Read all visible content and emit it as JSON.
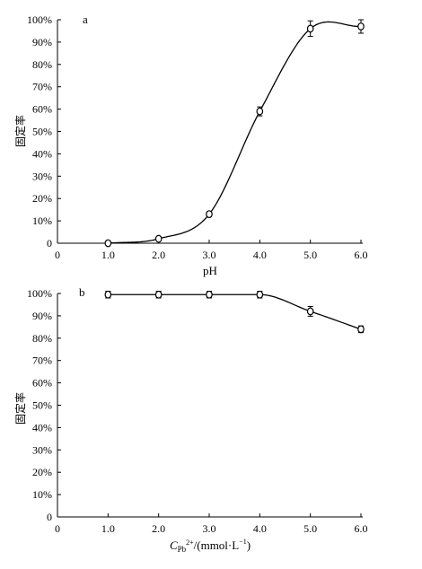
{
  "chart_data": [
    {
      "type": "line",
      "panel_label": "a",
      "title": "",
      "xlabel": "pH",
      "ylabel": "固定率",
      "xlim": [
        0,
        6
      ],
      "ylim": [
        0,
        100
      ],
      "x_ticks": [
        "0",
        "1.0",
        "2.0",
        "3.0",
        "4.0",
        "5.0",
        "6.0"
      ],
      "y_ticks": [
        "0",
        "10%",
        "20%",
        "30%",
        "40%",
        "50%",
        "60%",
        "70%",
        "80%",
        "90%",
        "100%"
      ],
      "grid": false,
      "series": [
        {
          "x": [
            1.0,
            2.0,
            3.0,
            4.0,
            5.0,
            6.0
          ],
          "y": [
            0,
            2,
            13,
            59,
            96,
            97
          ],
          "error": [
            0,
            0.8,
            1.0,
            2.0,
            3.5,
            3.0
          ],
          "marker": "open-circle"
        }
      ]
    },
    {
      "type": "line",
      "panel_label": "b",
      "title": "",
      "xlabel_main": "C",
      "xlabel_sub": "Pb",
      "xlabel_sup": "2+",
      "xlabel_unit": "/(mmol·L",
      "xlabel_exp": "−1",
      "xlabel_close": ")",
      "ylabel": "固定率",
      "xlim": [
        0,
        6
      ],
      "ylim": [
        0,
        100
      ],
      "x_ticks": [
        "0",
        "1.0",
        "2.0",
        "3.0",
        "4.0",
        "5.0",
        "6.0"
      ],
      "y_ticks": [
        "0",
        "10%",
        "20%",
        "30%",
        "40%",
        "50%",
        "60%",
        "70%",
        "80%",
        "90%",
        "100%"
      ],
      "grid": false,
      "series": [
        {
          "x": [
            1.0,
            2.0,
            3.0,
            4.0,
            5.0,
            6.0
          ],
          "y": [
            99.5,
            99.5,
            99.5,
            99.5,
            92,
            84
          ],
          "error": [
            1.5,
            1.5,
            1.5,
            1.5,
            2.2,
            1.5
          ],
          "marker": "open-circle"
        }
      ]
    }
  ]
}
